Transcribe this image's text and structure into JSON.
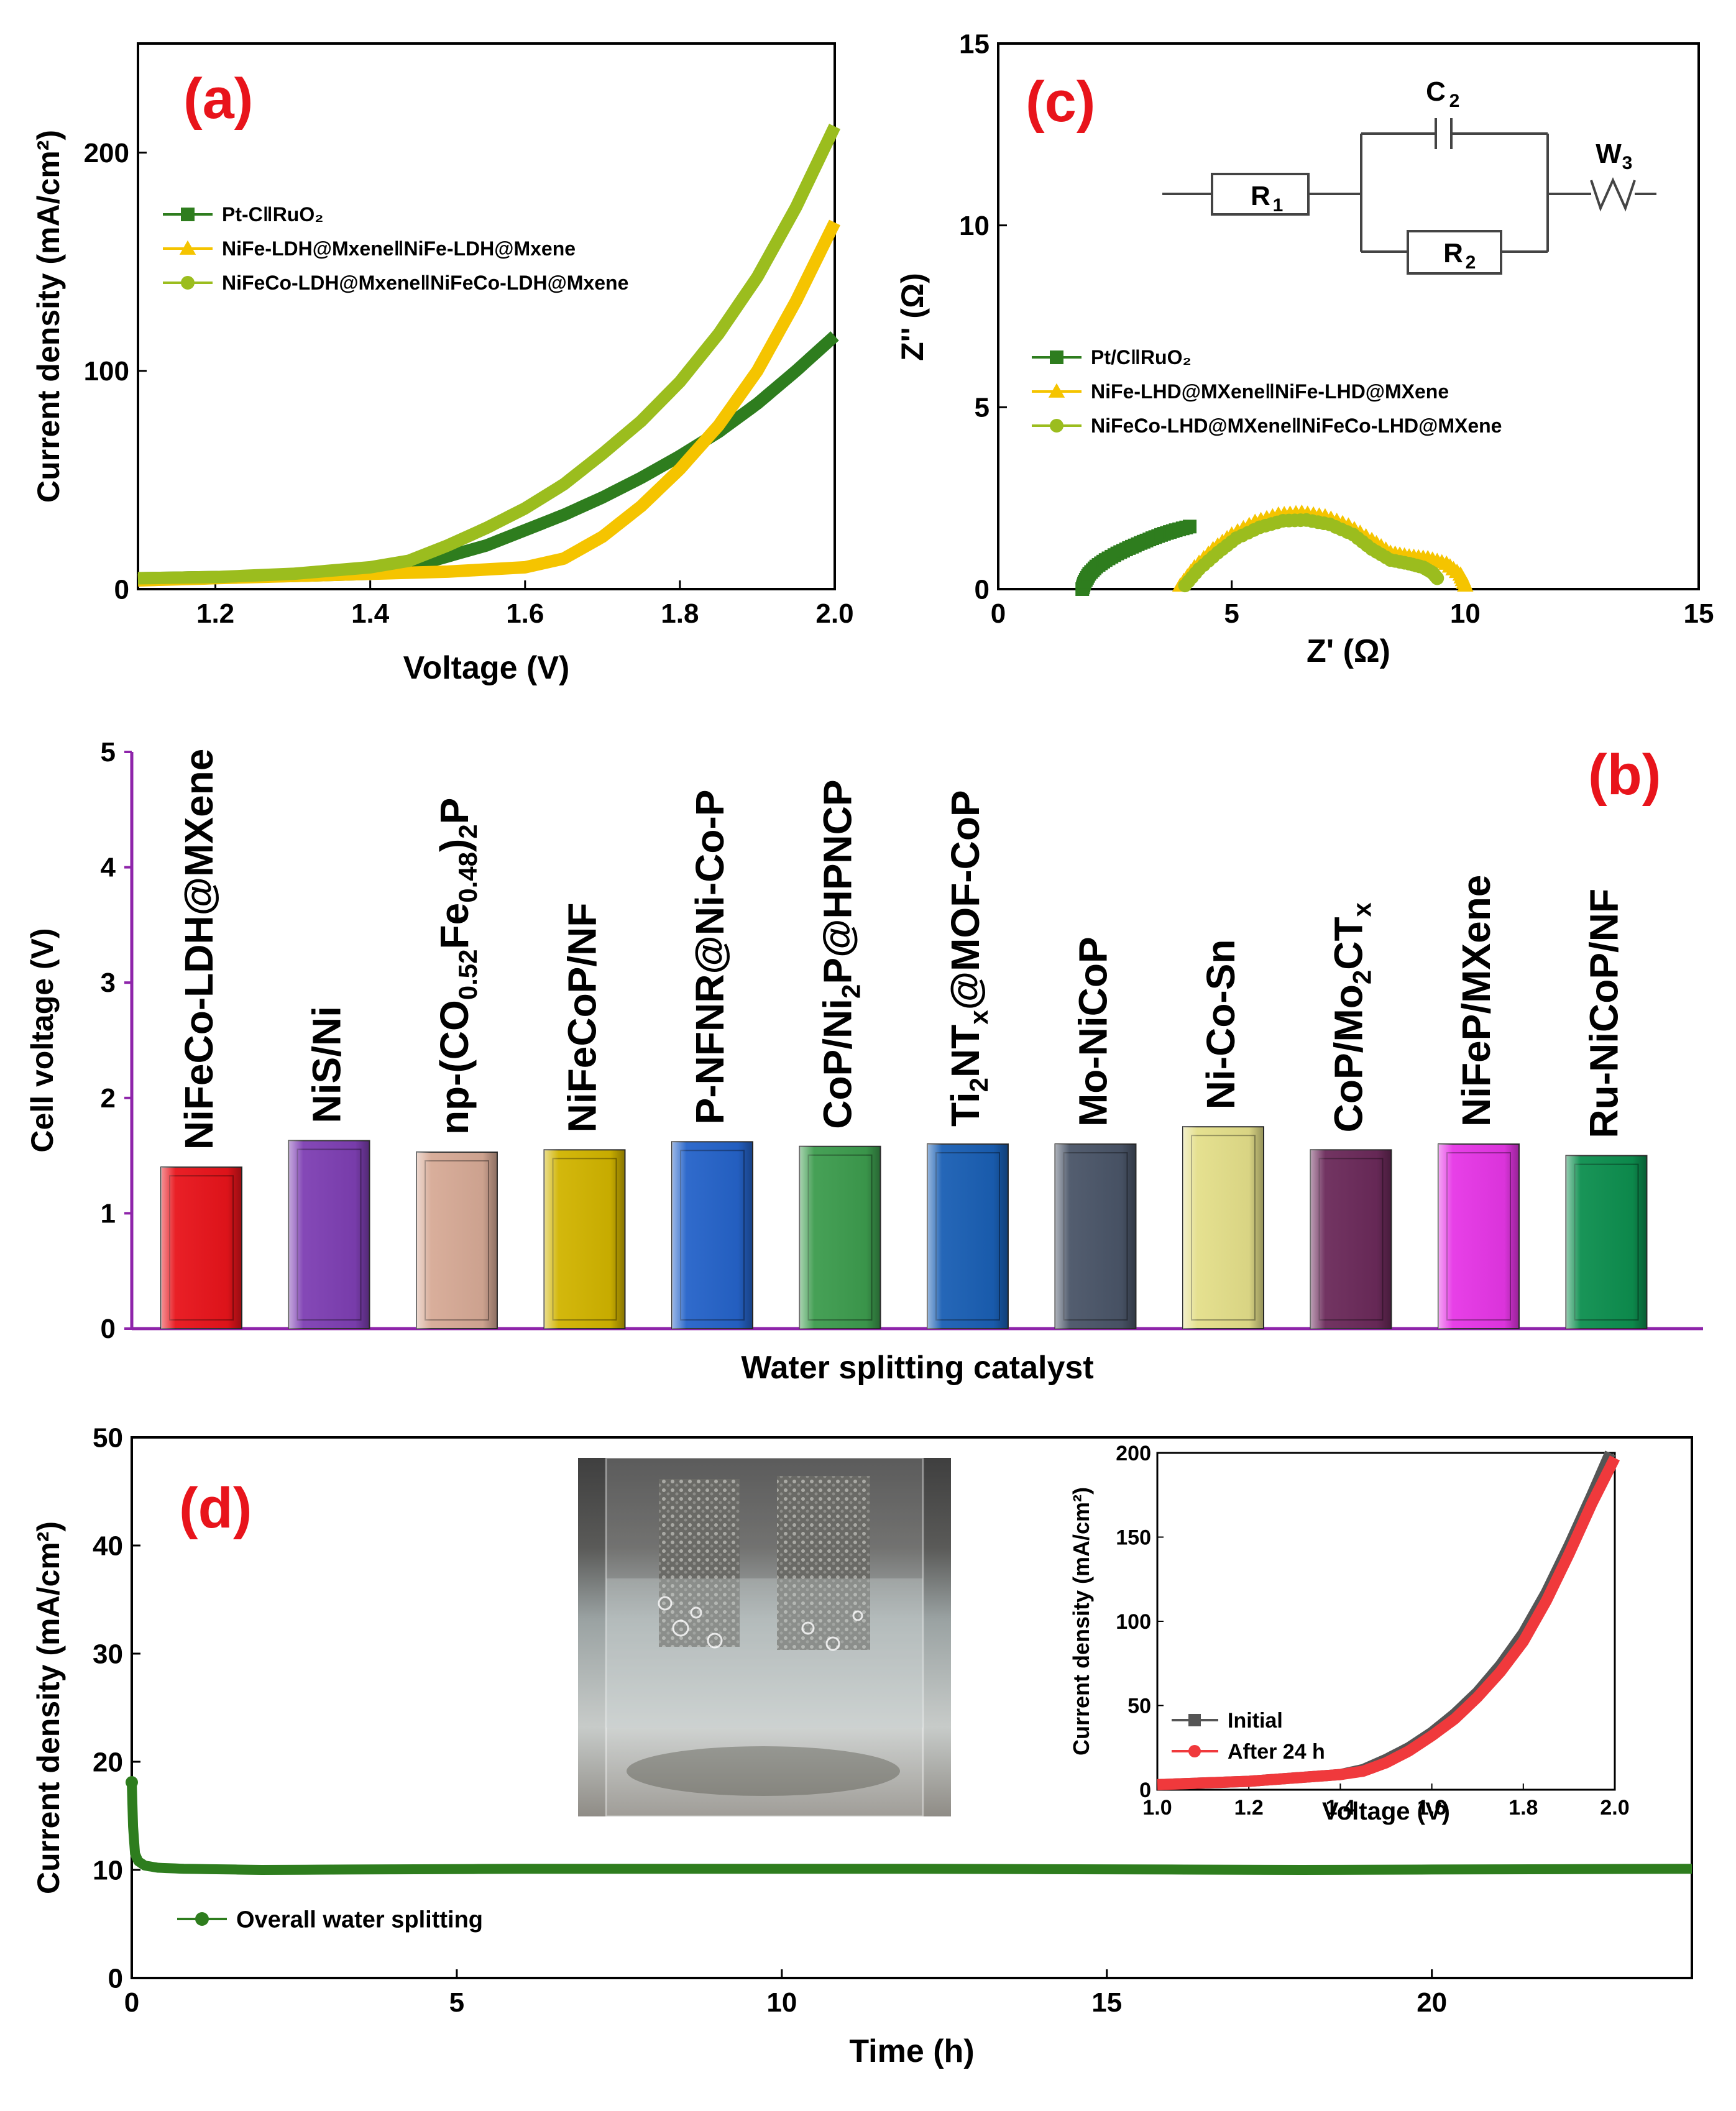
{
  "chart_data": [
    {
      "id": "a",
      "type": "line",
      "panel_label": "(a)",
      "xlabel": "Voltage (V)",
      "ylabel": "Current density (mA/cm²)",
      "xlim": [
        1.1,
        2.0
      ],
      "ylim": [
        0,
        250
      ],
      "xticks": [
        1.2,
        1.4,
        1.6,
        1.8,
        2.0
      ],
      "yticks": [
        0,
        100,
        200
      ],
      "xtick_labels": [
        "1.2",
        "1.4",
        "1.6",
        "1.8",
        "2.0"
      ],
      "ytick_labels": [
        "0",
        "100",
        "200"
      ],
      "series": [
        {
          "name": "Pt-C‖RuO₂",
          "color": "#2e7d1e",
          "marker": "square",
          "x": [
            1.1,
            1.2,
            1.3,
            1.4,
            1.45,
            1.5,
            1.55,
            1.6,
            1.65,
            1.7,
            1.75,
            1.8,
            1.85,
            1.9,
            1.95,
            2.0
          ],
          "y": [
            5,
            5.5,
            6,
            7,
            10,
            15,
            20,
            27,
            34,
            42,
            51,
            61,
            72,
            85,
            100,
            116
          ]
        },
        {
          "name": "NiFe-LDH@Mxene‖NiFe-LDH@Mxene",
          "color": "#f5c400",
          "marker": "triangle",
          "x": [
            1.1,
            1.2,
            1.3,
            1.4,
            1.5,
            1.6,
            1.65,
            1.7,
            1.75,
            1.8,
            1.85,
            1.9,
            1.95,
            2.0
          ],
          "y": [
            4,
            5,
            6,
            7,
            8,
            10,
            14,
            24,
            38,
            55,
            75,
            100,
            132,
            168
          ]
        },
        {
          "name": "NiFeCo-LDH@Mxene‖NiFeCo-LDH@Mxene",
          "color": "#9bbd1e",
          "marker": "circle",
          "x": [
            1.1,
            1.2,
            1.3,
            1.4,
            1.45,
            1.5,
            1.55,
            1.6,
            1.65,
            1.7,
            1.75,
            1.8,
            1.85,
            1.9,
            1.95,
            2.0
          ],
          "y": [
            5,
            5.5,
            7,
            10,
            13,
            20,
            28,
            37,
            48,
            62,
            77,
            95,
            117,
            143,
            175,
            212
          ]
        }
      ]
    },
    {
      "id": "c",
      "type": "scatter",
      "panel_label": "(c)",
      "xlabel": "Z' (Ω)",
      "ylabel": "Z'' (Ω)",
      "xlim": [
        0,
        15
      ],
      "ylim": [
        0,
        15
      ],
      "xticks": [
        0,
        5,
        10,
        15
      ],
      "yticks": [
        0,
        5,
        10,
        15
      ],
      "xtick_labels": [
        "0",
        "5",
        "10",
        "15"
      ],
      "ytick_labels": [
        "0",
        "5",
        "10",
        "15"
      ],
      "circuit": {
        "r1": "R",
        "r1_sub": "1",
        "c2": "C",
        "c2_sub": "2",
        "r2": "R",
        "r2_sub": "2",
        "w3": "W",
        "w3_sub": "3"
      },
      "series": [
        {
          "name": "Pt/C‖RuO₂",
          "color": "#2e7d1e",
          "marker": "square",
          "x": [
            1.8,
            1.85,
            1.95,
            2.1,
            2.3,
            2.55,
            2.8,
            3.05,
            3.3,
            3.55,
            3.8,
            4.1
          ],
          "y": [
            0.0,
            0.2,
            0.42,
            0.62,
            0.8,
            0.98,
            1.13,
            1.27,
            1.4,
            1.52,
            1.62,
            1.72
          ]
        },
        {
          "name": "NiFe-LHD@MXene‖NiFe-LHD@MXene",
          "color": "#f5c400",
          "marker": "triangle",
          "x": [
            3.9,
            4.2,
            4.6,
            5.0,
            5.5,
            6.0,
            6.5,
            7.0,
            7.5,
            8.0,
            8.4,
            8.8,
            9.2,
            9.6,
            9.9,
            10.0
          ],
          "y": [
            0.1,
            0.6,
            1.1,
            1.5,
            1.85,
            2.05,
            2.1,
            2.0,
            1.75,
            1.35,
            1.0,
            0.9,
            0.85,
            0.7,
            0.4,
            0.1
          ]
        },
        {
          "name": "NiFeCo-LHD@MXene‖NiFeCo-LHD@MXene",
          "color": "#9bbd1e",
          "marker": "circle",
          "x": [
            4.0,
            4.3,
            4.7,
            5.1,
            5.6,
            6.1,
            6.6,
            7.1,
            7.6,
            8.0,
            8.4,
            8.8,
            9.1,
            9.3,
            9.4
          ],
          "y": [
            0.1,
            0.55,
            1.0,
            1.4,
            1.7,
            1.88,
            1.9,
            1.78,
            1.5,
            1.1,
            0.8,
            0.7,
            0.6,
            0.45,
            0.3
          ]
        }
      ]
    },
    {
      "id": "b",
      "type": "bar",
      "panel_label": "(b)",
      "xlabel": "Water splitting catalyst",
      "ylabel": "Cell voltage (V)",
      "ylim": [
        0,
        5
      ],
      "yticks": [
        0,
        1,
        2,
        3,
        4,
        5
      ],
      "ytick_labels": [
        "0",
        "1",
        "2",
        "3",
        "4",
        "5"
      ],
      "categories": [
        {
          "main": "NiFeCo-LDH@MXene"
        },
        {
          "main": "NiS/Ni"
        },
        {
          "main": "np-(CO",
          "sub1": "0.52",
          "mid": "Fe",
          "sub2": "0.48",
          "tail": ")",
          "sub3": "2",
          "tail2": "P"
        },
        {
          "main": "NiFeCoP/NF"
        },
        {
          "main": "P-NFNR@Ni-Co-P"
        },
        {
          "main": "CoP/Ni",
          "sub1": "2",
          "mid": "P@HPNCP"
        },
        {
          "main": "Ti",
          "sub1": "2",
          "mid": "NT",
          "sub2": "x",
          "tail": "@MOF-CoP"
        },
        {
          "main": "Mo-NiCoP"
        },
        {
          "main": "Ni-Co-Sn"
        },
        {
          "main": "CoP/Mo",
          "sub1": "2",
          "mid": "CT",
          "sub2": "x"
        },
        {
          "main": "NiFeP/MXene"
        },
        {
          "main": "Ru-NiCoP/NF"
        }
      ],
      "values": [
        1.4,
        1.63,
        1.53,
        1.55,
        1.62,
        1.58,
        1.6,
        1.6,
        1.75,
        1.55,
        1.6,
        1.5
      ],
      "colors": [
        "#e8141b",
        "#7e3fb3",
        "#d7aa96",
        "#d1b400",
        "#2563c9",
        "#3d9c4e",
        "#1a5fb4",
        "#4a5568",
        "#e4df8a",
        "#6b2a5a",
        "#e636e6",
        "#0d8f4f"
      ],
      "highlight_color": "#1ab2ea"
    },
    {
      "id": "d",
      "type": "line",
      "panel_label": "(d)",
      "xlabel": "Time (h)",
      "ylabel": "Current density (mA/cm²)",
      "xlim": [
        0,
        24
      ],
      "ylim": [
        0,
        50
      ],
      "xticks": [
        0,
        5,
        10,
        15,
        20
      ],
      "yticks": [
        0,
        10,
        20,
        30,
        40,
        50
      ],
      "xtick_labels": [
        "0",
        "5",
        "10",
        "15",
        "20"
      ],
      "ytick_labels": [
        "0",
        "10",
        "20",
        "30",
        "40",
        "50"
      ],
      "series": [
        {
          "name": "Overall water splitting",
          "color": "#2e7d1e",
          "marker": "circle",
          "x": [
            0,
            0.02,
            0.05,
            0.1,
            0.2,
            0.4,
            0.8,
            2,
            6,
            12,
            18,
            24
          ],
          "y": [
            18.1,
            14,
            11.5,
            10.8,
            10.4,
            10.2,
            10.1,
            10.0,
            10.1,
            10.1,
            10.0,
            10.1
          ]
        }
      ],
      "inset": {
        "xlabel": "Voltage (V)",
        "ylabel": "Current density (mA/cm²)",
        "xlim": [
          1.0,
          2.0
        ],
        "ylim": [
          0,
          200
        ],
        "xticks": [
          1.0,
          1.2,
          1.4,
          1.6,
          1.8,
          2.0
        ],
        "yticks": [
          0,
          50,
          100,
          150,
          200
        ],
        "xtick_labels": [
          "1.0",
          "1.2",
          "1.4",
          "1.6",
          "1.8",
          "2.0"
        ],
        "ytick_labels": [
          "0",
          "50",
          "100",
          "150",
          "200"
        ],
        "series": [
          {
            "name": "Initial",
            "color": "#555555",
            "marker": "square",
            "x": [
              1.0,
              1.1,
              1.2,
              1.3,
              1.4,
              1.45,
              1.5,
              1.55,
              1.6,
              1.65,
              1.7,
              1.75,
              1.8,
              1.85,
              1.9,
              1.95,
              1.99
            ],
            "y": [
              3,
              4,
              5,
              7,
              9,
              12,
              18,
              25,
              34,
              45,
              58,
              74,
              93,
              117,
              145,
              175,
              200
            ]
          },
          {
            "name": "After 24 h",
            "color": "#f0393c",
            "marker": "circle",
            "x": [
              1.0,
              1.1,
              1.2,
              1.3,
              1.4,
              1.45,
              1.5,
              1.55,
              1.6,
              1.65,
              1.7,
              1.75,
              1.8,
              1.85,
              1.9,
              1.95,
              2.0
            ],
            "y": [
              3,
              4,
              5,
              7,
              9,
              11,
              16,
              23,
              32,
              42,
              55,
              70,
              88,
              112,
              140,
              170,
              197
            ]
          }
        ]
      }
    }
  ],
  "colors": {
    "label_red": "#e8141b",
    "axis_purple": "#8e24aa",
    "plot_green": "#2e7d1e"
  },
  "photo_icon": "beaker-photo"
}
